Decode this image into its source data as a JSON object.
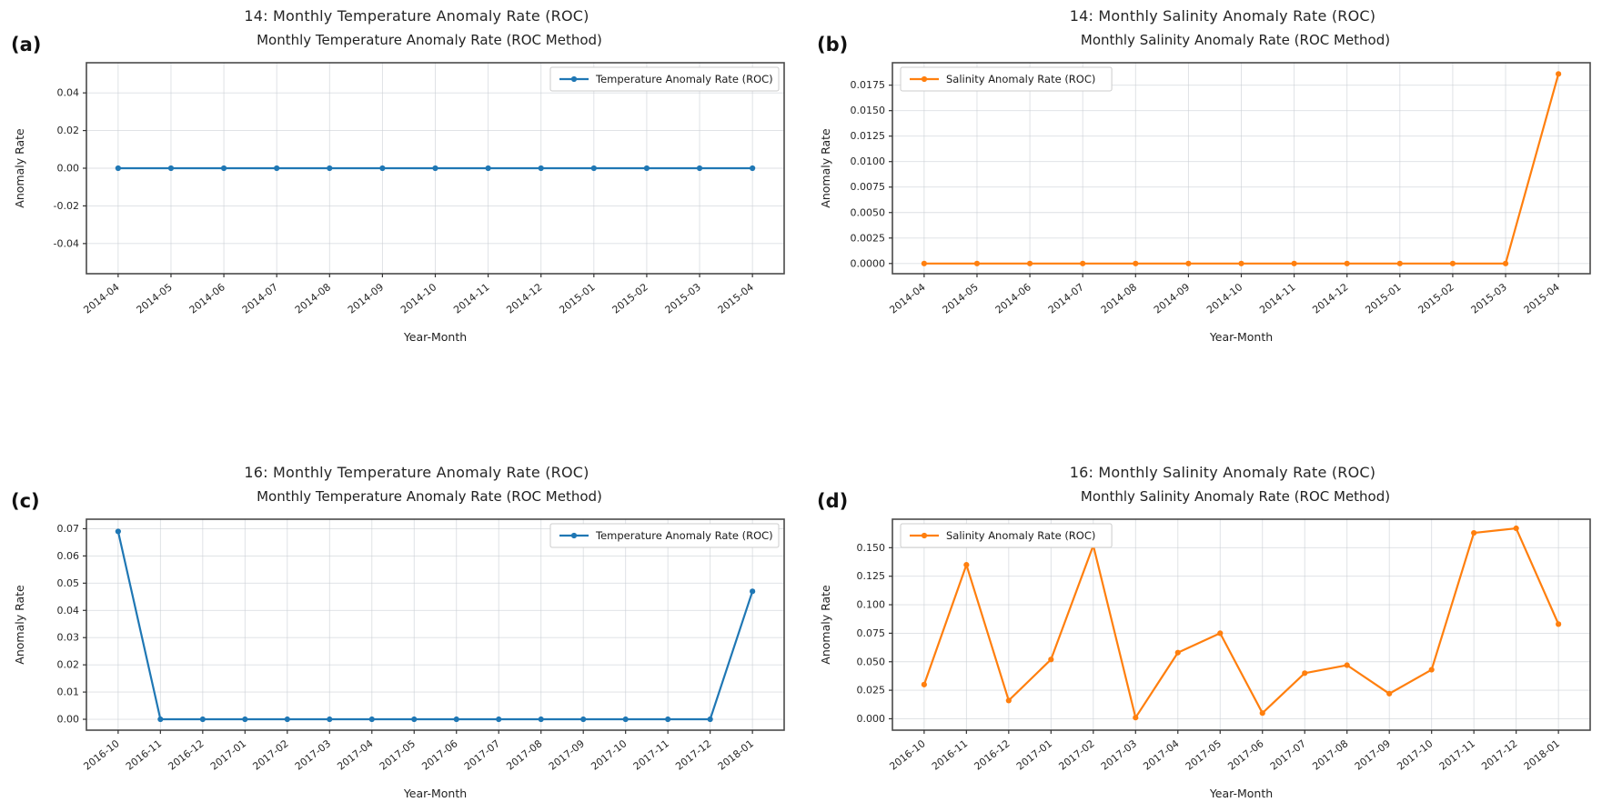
{
  "figure": {
    "xlabel": "Year-Month",
    "ylabel": "Anomaly Rate"
  },
  "chart_data": [
    {
      "type": "line",
      "panel_label": "(a)",
      "suptitle": "14: Monthly Temperature Anomaly Rate (ROC)",
      "title": "Monthly Temperature Anomaly Rate (ROC Method)",
      "series": [
        {
          "name": "Temperature Anomaly Rate (ROC)",
          "color": "#1f77b4"
        }
      ],
      "legend_position": "top-right",
      "xlabel": "Year-Month",
      "ylabel": "Anomaly Rate",
      "grid": true,
      "categories": [
        "2014-04",
        "2014-05",
        "2014-06",
        "2014-07",
        "2014-08",
        "2014-09",
        "2014-10",
        "2014-11",
        "2014-12",
        "2015-01",
        "2015-02",
        "2015-03",
        "2015-04"
      ],
      "values": [
        0.0,
        0.0,
        0.0,
        0.0,
        0.0,
        0.0,
        0.0,
        0.0,
        0.0,
        0.0,
        0.0,
        0.0,
        0.0
      ],
      "ylim": [
        -0.056,
        0.056
      ],
      "ytick_values": [
        -0.04,
        -0.02,
        0.0,
        0.02,
        0.04
      ],
      "ytick_labels": [
        "-0.04",
        "-0.02",
        "0.00",
        "0.02",
        "0.04"
      ]
    },
    {
      "type": "line",
      "panel_label": "(b)",
      "suptitle": "14: Monthly Salinity Anomaly Rate (ROC)",
      "title": "Monthly Salinity Anomaly Rate (ROC Method)",
      "series": [
        {
          "name": "Salinity Anomaly Rate (ROC)",
          "color": "#ff7f0e"
        }
      ],
      "legend_position": "top-left",
      "xlabel": "Year-Month",
      "ylabel": "Anomaly Rate",
      "grid": true,
      "categories": [
        "2014-04",
        "2014-05",
        "2014-06",
        "2014-07",
        "2014-08",
        "2014-09",
        "2014-10",
        "2014-11",
        "2014-12",
        "2015-01",
        "2015-02",
        "2015-03",
        "2015-04"
      ],
      "values": [
        0.0,
        0.0,
        0.0,
        0.0,
        0.0,
        0.0,
        0.0,
        0.0,
        0.0,
        0.0,
        0.0,
        0.0,
        0.0186
      ],
      "ylim": [
        -0.001,
        0.0197
      ],
      "ytick_values": [
        0.0,
        0.0025,
        0.005,
        0.0075,
        0.01,
        0.0125,
        0.015,
        0.0175
      ],
      "ytick_labels": [
        "0.0000",
        "0.0025",
        "0.0050",
        "0.0075",
        "0.0100",
        "0.0125",
        "0.0150",
        "0.0175"
      ]
    },
    {
      "type": "line",
      "panel_label": "(c)",
      "suptitle": "16: Monthly Temperature Anomaly Rate (ROC)",
      "title": "Monthly Temperature Anomaly Rate (ROC Method)",
      "series": [
        {
          "name": "Temperature Anomaly Rate (ROC)",
          "color": "#1f77b4"
        }
      ],
      "legend_position": "top-right",
      "xlabel": "Year-Month",
      "ylabel": "Anomaly Rate",
      "grid": true,
      "categories": [
        "2016-10",
        "2016-11",
        "2016-12",
        "2017-01",
        "2017-02",
        "2017-03",
        "2017-04",
        "2017-05",
        "2017-06",
        "2017-07",
        "2017-08",
        "2017-09",
        "2017-10",
        "2017-11",
        "2017-12",
        "2018-01"
      ],
      "values": [
        0.069,
        0.0,
        0.0,
        0.0,
        0.0,
        0.0,
        0.0,
        0.0,
        0.0,
        0.0,
        0.0,
        0.0,
        0.0,
        0.0,
        0.0,
        0.047
      ],
      "ylim": [
        -0.004,
        0.0735
      ],
      "ytick_values": [
        0.0,
        0.01,
        0.02,
        0.03,
        0.04,
        0.05,
        0.06,
        0.07
      ],
      "ytick_labels": [
        "0.00",
        "0.01",
        "0.02",
        "0.03",
        "0.04",
        "0.05",
        "0.06",
        "0.07"
      ]
    },
    {
      "type": "line",
      "panel_label": "(d)",
      "suptitle": "16: Monthly Salinity Anomaly Rate (ROC)",
      "title": "Monthly Salinity Anomaly Rate (ROC Method)",
      "series": [
        {
          "name": "Salinity Anomaly Rate (ROC)",
          "color": "#ff7f0e"
        }
      ],
      "legend_position": "top-left",
      "xlabel": "Year-Month",
      "ylabel": "Anomaly Rate",
      "grid": true,
      "categories": [
        "2016-10",
        "2016-11",
        "2016-12",
        "2017-01",
        "2017-02",
        "2017-03",
        "2017-04",
        "2017-05",
        "2017-06",
        "2017-07",
        "2017-08",
        "2017-09",
        "2017-10",
        "2017-11",
        "2017-12",
        "2018-01"
      ],
      "values": [
        0.03,
        0.135,
        0.016,
        0.052,
        0.152,
        0.001,
        0.058,
        0.075,
        0.005,
        0.04,
        0.047,
        0.022,
        0.043,
        0.163,
        0.167,
        0.083
      ],
      "ylim": [
        -0.01,
        0.175
      ],
      "ytick_values": [
        0.0,
        0.025,
        0.05,
        0.075,
        0.1,
        0.125,
        0.15
      ],
      "ytick_labels": [
        "0.000",
        "0.025",
        "0.050",
        "0.075",
        "0.100",
        "0.125",
        "0.150"
      ]
    }
  ]
}
